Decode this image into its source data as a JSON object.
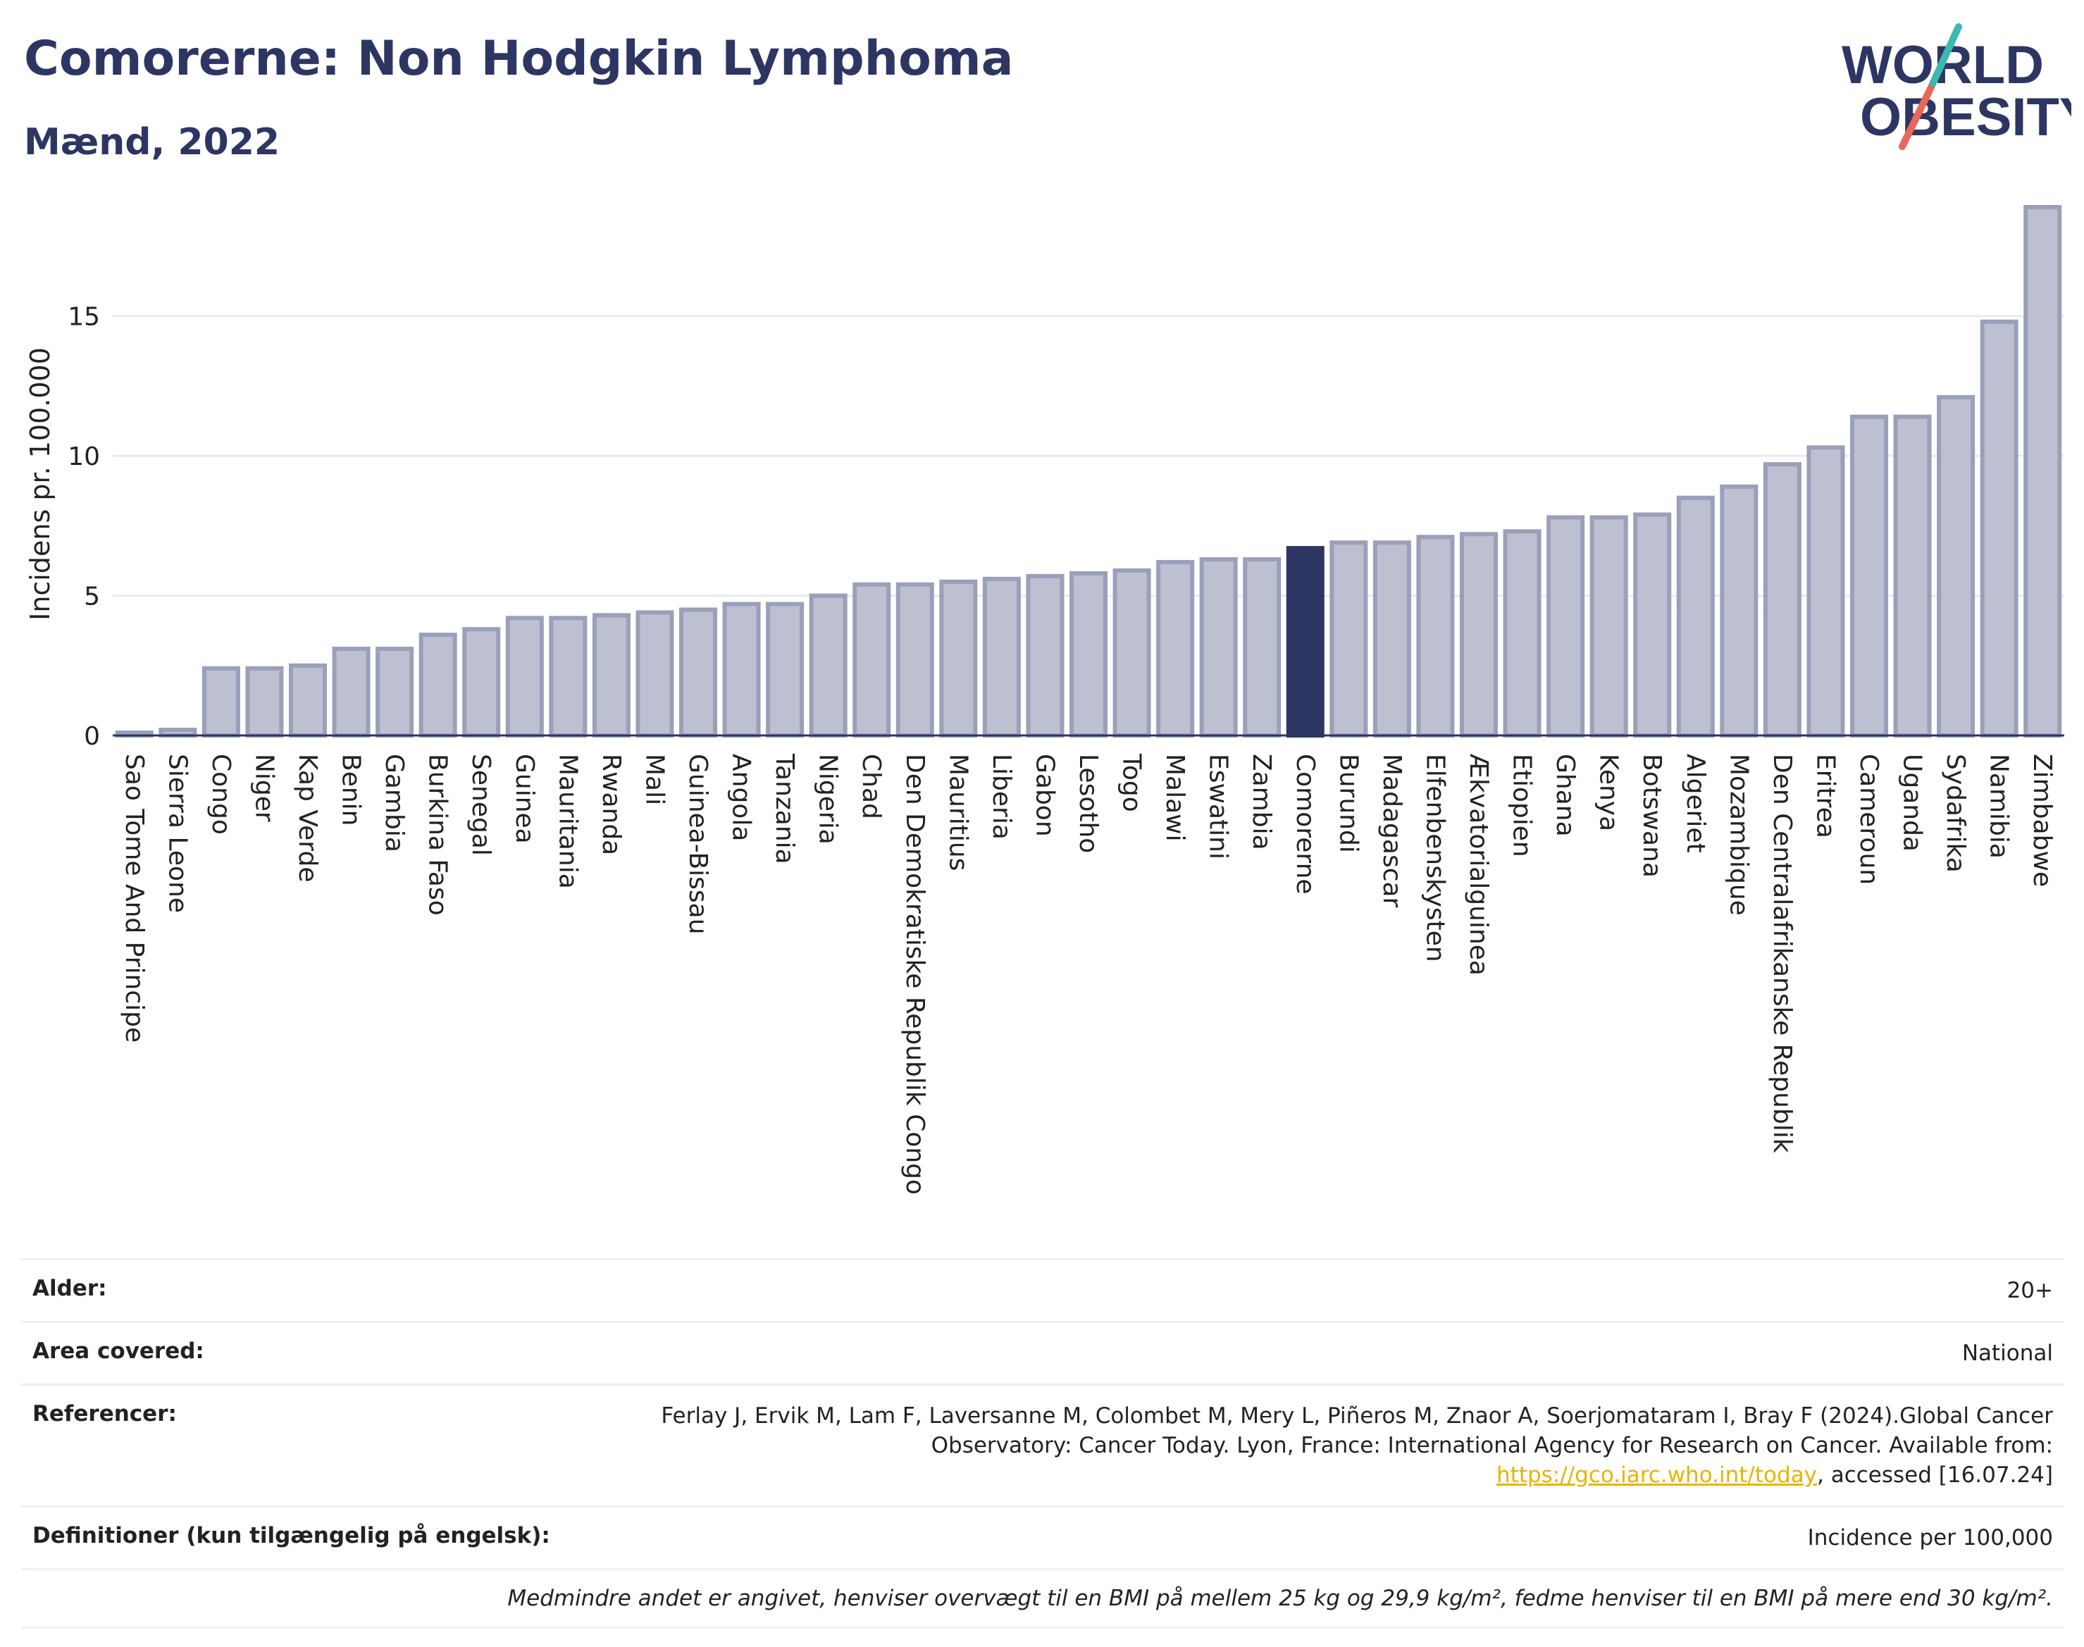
{
  "header": {
    "title": "Comorerne: Non Hodgkin Lymphoma",
    "subtitle": "Mænd, 2022",
    "logo_line1": "WORLD",
    "logo_line2": "OBESITY"
  },
  "colors": {
    "title": "#2d3663",
    "bar_fill": "#bcc0d0",
    "bar_stroke": "#9aa0ba",
    "highlight": "#2d3663",
    "logo_teal": "#3bb8b0",
    "logo_red": "#e8675a",
    "link": "#e8b400"
  },
  "chart_data": {
    "type": "bar",
    "ylabel": "Incidens pr. 100.000",
    "xlabel": "",
    "ylim": [
      0,
      19
    ],
    "yticks": [
      0,
      5,
      10,
      15
    ],
    "grid": true,
    "highlight": "Comorerne",
    "categories": [
      "Sao Tome And Principe",
      "Sierra Leone",
      "Congo",
      "Niger",
      "Kap Verde",
      "Benin",
      "Gambia",
      "Burkina Faso",
      "Senegal",
      "Guinea",
      "Mauritania",
      "Rwanda",
      "Mali",
      "Guinea-Bissau",
      "Angola",
      "Tanzania",
      "Nigeria",
      "Chad",
      "Den Demokratiske Republik Congo",
      "Mauritius",
      "Liberia",
      "Gabon",
      "Lesotho",
      "Togo",
      "Malawi",
      "Eswatini",
      "Zambia",
      "Comorerne",
      "Burundi",
      "Madagascar",
      "Elfenbenskysten",
      "Ækvatorialguinea",
      "Etiopien",
      "Ghana",
      "Kenya",
      "Botswana",
      "Algeriet",
      "Mozambique",
      "Den Centralafrikanske Republik",
      "Eritrea",
      "Cameroun",
      "Uganda",
      "Sydafrika",
      "Namibia",
      "Zimbabwe"
    ],
    "values": [
      0.1,
      0.2,
      2.4,
      2.4,
      2.5,
      3.1,
      3.1,
      3.6,
      3.8,
      4.2,
      4.2,
      4.3,
      4.4,
      4.5,
      4.7,
      4.7,
      5.0,
      5.4,
      5.4,
      5.5,
      5.6,
      5.7,
      5.8,
      5.9,
      6.2,
      6.3,
      6.3,
      6.7,
      6.9,
      6.9,
      7.1,
      7.2,
      7.3,
      7.8,
      7.8,
      7.9,
      8.5,
      8.9,
      9.7,
      10.3,
      11.4,
      11.4,
      12.1,
      14.8,
      18.9
    ]
  },
  "meta": {
    "rows": [
      {
        "label": "Alder:",
        "value": "20+"
      },
      {
        "label": "Area covered:",
        "value": "National"
      },
      {
        "label": "Referencer:",
        "value_pre": "Ferlay J, Ervik M, Lam F, Laversanne M, Colombet M, Mery L, Piñeros M, Znaor A, Soerjomataram I, Bray F (2024).Global Cancer Observatory: Cancer Today. Lyon, France: International Agency for Research on Cancer. Available from: ",
        "link": "https://gco.iarc.who.int/today",
        "value_post": ", accessed [16.07.24]"
      },
      {
        "label": "Definitioner (kun tilgængelig på engelsk):",
        "value": "Incidence per 100,000"
      }
    ],
    "note": "Medmindre andet er angivet, henviser overvægt til en BMI på mellem 25 kg og 29,9 kg/m², fedme henviser til en BMI på mere end 30 kg/m²."
  }
}
